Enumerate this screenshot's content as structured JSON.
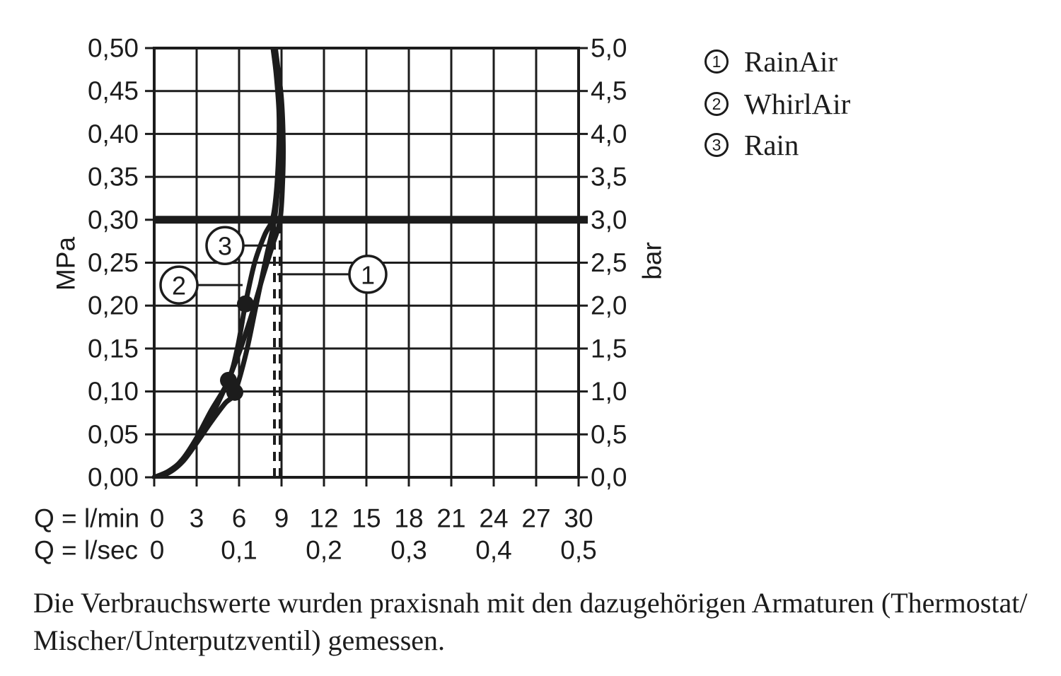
{
  "page": {
    "background": "#ffffff",
    "ink_color": "#1c1c1c"
  },
  "chart_data": {
    "type": "line",
    "title": "",
    "x_axis": {
      "primary_label": "Q = l/min",
      "secondary_label": "Q = l/sec",
      "range_l_min": [
        0,
        30
      ],
      "grid_step_l_min": 3,
      "primary_ticks": [
        {
          "q": 0,
          "label": "0"
        },
        {
          "q": 3,
          "label": "3"
        },
        {
          "q": 6,
          "label": "6"
        },
        {
          "q": 9,
          "label": "9"
        },
        {
          "q": 12,
          "label": "12"
        },
        {
          "q": 15,
          "label": "15"
        },
        {
          "q": 18,
          "label": "18"
        },
        {
          "q": 21,
          "label": "21"
        },
        {
          "q": 24,
          "label": "24"
        },
        {
          "q": 27,
          "label": "27"
        },
        {
          "q": 30,
          "label": "30"
        }
      ],
      "secondary_ticks": [
        {
          "q": 0,
          "label": "0"
        },
        {
          "q": 6,
          "label": "0,1"
        },
        {
          "q": 12,
          "label": "0,2"
        },
        {
          "q": 18,
          "label": "0,3"
        },
        {
          "q": 24,
          "label": "0,4"
        },
        {
          "q": 30,
          "label": "0,5"
        }
      ]
    },
    "y_axis_left": {
      "unit": "MPa",
      "range_mpa": [
        0,
        0.5
      ],
      "ticks": [
        {
          "p": 0.0,
          "label": "0,00"
        },
        {
          "p": 0.05,
          "label": "0,05"
        },
        {
          "p": 0.1,
          "label": "0,10"
        },
        {
          "p": 0.15,
          "label": "0,15"
        },
        {
          "p": 0.2,
          "label": "0,20"
        },
        {
          "p": 0.25,
          "label": "0,25"
        },
        {
          "p": 0.3,
          "label": "0,30"
        },
        {
          "p": 0.35,
          "label": "0,35"
        },
        {
          "p": 0.4,
          "label": "0,40"
        },
        {
          "p": 0.45,
          "label": "0,45"
        },
        {
          "p": 0.5,
          "label": "0,50"
        }
      ]
    },
    "y_axis_right": {
      "unit": "bar",
      "ticks": [
        {
          "p": 0.0,
          "label": "0,0"
        },
        {
          "p": 0.05,
          "label": "0,5"
        },
        {
          "p": 0.1,
          "label": "1,0"
        },
        {
          "p": 0.15,
          "label": "1,5"
        },
        {
          "p": 0.2,
          "label": "2,0"
        },
        {
          "p": 0.25,
          "label": "2,5"
        },
        {
          "p": 0.3,
          "label": "3,0"
        },
        {
          "p": 0.35,
          "label": "3,5"
        },
        {
          "p": 0.4,
          "label": "4,0"
        },
        {
          "p": 0.45,
          "label": "4,5"
        },
        {
          "p": 0.5,
          "label": "5,0"
        }
      ]
    },
    "reference_line_mpa": 0.3,
    "dashed_guides_l_min": [
      8.5,
      8.9
    ],
    "series": [
      {
        "id": "1",
        "name": "RainAir",
        "points_q_mpa": [
          [
            0,
            0
          ],
          [
            1,
            0.007
          ],
          [
            2,
            0.02
          ],
          [
            3,
            0.042
          ],
          [
            4,
            0.07
          ],
          [
            5,
            0.104
          ],
          [
            6,
            0.145
          ],
          [
            6.9,
            0.19
          ],
          [
            7.7,
            0.235
          ],
          [
            8.4,
            0.272
          ],
          [
            8.9,
            0.3
          ],
          [
            9.08,
            0.345
          ],
          [
            9.12,
            0.39
          ],
          [
            9.0,
            0.44
          ],
          [
            8.72,
            0.48
          ],
          [
            8.55,
            0.502
          ]
        ]
      },
      {
        "id": "2",
        "name": "WhirlAir",
        "points_q_mpa": [
          [
            0,
            0
          ],
          [
            1,
            0.006
          ],
          [
            2,
            0.021
          ],
          [
            3,
            0.046
          ],
          [
            4,
            0.077
          ],
          [
            5.25,
            0.113
          ],
          [
            5.9,
            0.152
          ],
          [
            6.45,
            0.202
          ],
          [
            7.1,
            0.25
          ],
          [
            7.8,
            0.282
          ],
          [
            8.35,
            0.3
          ],
          [
            8.62,
            0.33
          ],
          [
            8.8,
            0.38
          ],
          [
            8.82,
            0.425
          ],
          [
            8.62,
            0.47
          ],
          [
            8.38,
            0.502
          ]
        ]
      },
      {
        "id": "3",
        "name": "Rain",
        "points_q_mpa": [
          [
            0,
            0
          ],
          [
            1,
            0.005
          ],
          [
            2,
            0.018
          ],
          [
            3,
            0.04
          ],
          [
            4,
            0.064
          ],
          [
            5,
            0.086
          ],
          [
            5.7,
            0.099
          ],
          [
            6.5,
            0.145
          ],
          [
            7.2,
            0.2
          ],
          [
            7.9,
            0.255
          ],
          [
            8.5,
            0.3
          ],
          [
            8.78,
            0.35
          ],
          [
            8.95,
            0.405
          ],
          [
            8.87,
            0.45
          ],
          [
            8.68,
            0.482
          ],
          [
            8.5,
            0.502
          ]
        ]
      }
    ],
    "measurement_dots_q_mpa": [
      [
        5.25,
        0.113
      ],
      [
        5.7,
        0.099
      ],
      [
        6.45,
        0.202
      ]
    ],
    "callouts": [
      {
        "label": "1",
        "center_q_mpa": [
          15.1,
          0.2365
        ],
        "leader_end_q_mpa": [
          8.7,
          0.2365
        ]
      },
      {
        "label": "2",
        "center_q_mpa": [
          1.75,
          0.224
        ],
        "leader_end_q_mpa": [
          6.25,
          0.224
        ]
      },
      {
        "label": "3",
        "center_q_mpa": [
          5.0,
          0.27
        ],
        "leader_end_q_mpa": [
          8.1,
          0.27
        ]
      }
    ]
  },
  "legend": {
    "items": [
      {
        "number": "1",
        "label": "RainAir"
      },
      {
        "number": "2",
        "label": "WhirlAir"
      },
      {
        "number": "3",
        "label": "Rain"
      }
    ]
  },
  "footnote": {
    "line1": "Die Verbrauchswerte wurden praxisnah mit den dazugehörigen Armaturen (Thermostat/",
    "line2": "Mischer/Unterputzventil) gemessen."
  }
}
